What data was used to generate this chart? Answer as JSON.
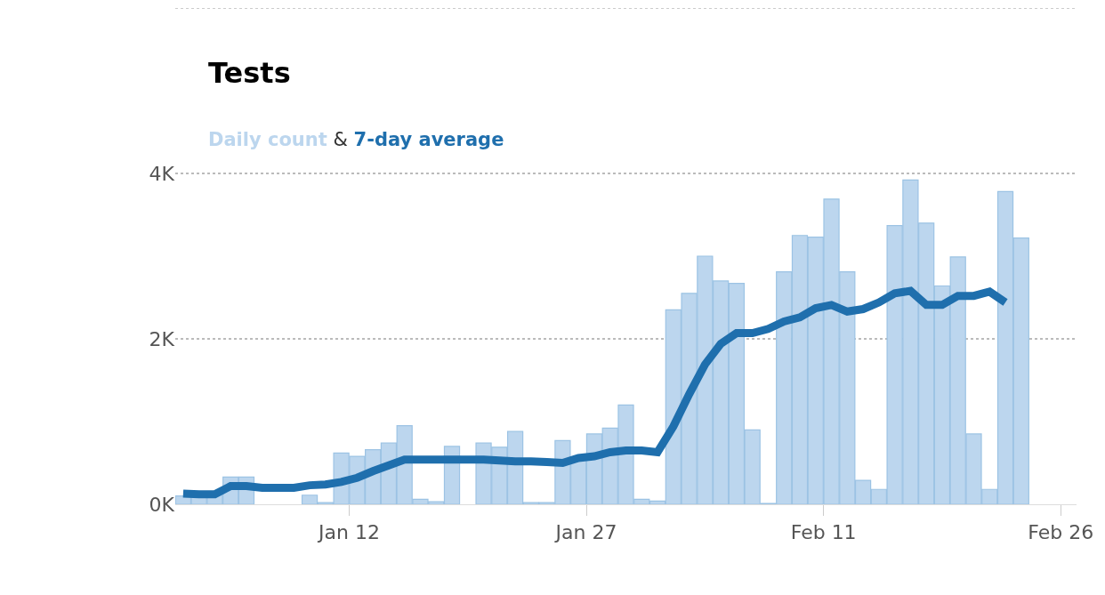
{
  "chart_data": {
    "type": "bar",
    "title": "Tests",
    "annotations": [
      "&"
    ],
    "x": [
      "--01-01T12:00",
      "--01-02T12:00",
      "--01-03T12:00",
      "--01-04T12:00",
      "--01-05T12:00",
      "--01-06T12:00",
      "--01-07T12:00",
      "--01-08T12:00",
      "--01-09T12:00",
      "--01-10T12:00",
      "--01-11T12:00",
      "--01-12T12:00",
      "--01-13T12:00",
      "--01-14T12:00",
      "--01-15T12:00",
      "--01-16T12:00",
      "--01-17T12:00",
      "--01-18T12:00",
      "--01-19T12:00",
      "--01-20T12:00",
      "--01-21T12:00",
      "--01-22T12:00",
      "--01-23T12:00",
      "--01-24T12:00",
      "--01-25T12:00",
      "--01-26T12:00",
      "--01-27T12:00",
      "--01-28T12:00",
      "--01-29T12:00",
      "--01-30T12:00",
      "--01-31T12:00",
      "--02-01T12:00",
      "--02-02T12:00",
      "--02-03T12:00",
      "--02-04T12:00",
      "--02-05T12:00",
      "--02-06T12:00",
      "--02-07T12:00",
      "--02-08T12:00",
      "--02-09T12:00",
      "--02-10T12:00",
      "--02-11T12:00",
      "--02-12T12:00",
      "--02-13T12:00",
      "--02-14T12:00",
      "--02-15T12:00",
      "--02-16T12:00",
      "--02-17T12:00",
      "--02-18T12:00",
      "--02-19T12:00",
      "--02-20T12:00",
      "--02-21T12:00",
      "--02-22T12:00",
      "--02-23T12:00"
    ],
    "series": [
      {
        "name": "Daily count",
        "color": "#bcd6ee",
        "values": [
          100,
          100,
          110,
          330,
          330,
          null,
          null,
          null,
          110,
          20,
          620,
          580,
          660,
          740,
          950,
          60,
          30,
          700,
          null,
          740,
          690,
          880,
          20,
          20,
          770,
          560,
          850,
          920,
          1200,
          60,
          40,
          2350,
          2550,
          3000,
          2700,
          2670,
          900,
          10,
          2810,
          3250,
          3230,
          3690,
          2810,
          290,
          180,
          3370,
          3920,
          3400,
          2640,
          2990,
          850,
          180,
          3780,
          3220
        ]
      },
      {
        "name": "7-day average",
        "type": "line",
        "color": "#1f6fad",
        "values": [
          130,
          120,
          120,
          220,
          220,
          200,
          200,
          200,
          230,
          240,
          270,
          320,
          400,
          470,
          540,
          540,
          540,
          540,
          540,
          540,
          530,
          520,
          520,
          510,
          500,
          560,
          580,
          630,
          650,
          650,
          630,
          940,
          1330,
          1690,
          1940,
          2070,
          2070,
          2120,
          2210,
          2260,
          2370,
          2410,
          2330,
          2360,
          2440,
          2550,
          2580,
          2410,
          2410,
          2520,
          2520,
          2570,
          2440,
          null
        ]
      }
    ],
    "xlim": [
      "--01-01",
      "--02-27"
    ],
    "xticks": [
      {
        "value": "--01-12",
        "label": "Jan 12"
      },
      {
        "value": "--01-27",
        "label": "Jan 27"
      },
      {
        "value": "--02-11",
        "label": "Feb 11"
      },
      {
        "value": "--02-26",
        "label": "Feb 26"
      }
    ],
    "ylim": [
      0,
      6000
    ],
    "yticks": [
      {
        "value": 0,
        "label": "0K"
      },
      {
        "value": 2000,
        "label": "2K"
      },
      {
        "value": 4000,
        "label": "4K"
      }
    ],
    "grid": "y",
    "legend": false
  }
}
